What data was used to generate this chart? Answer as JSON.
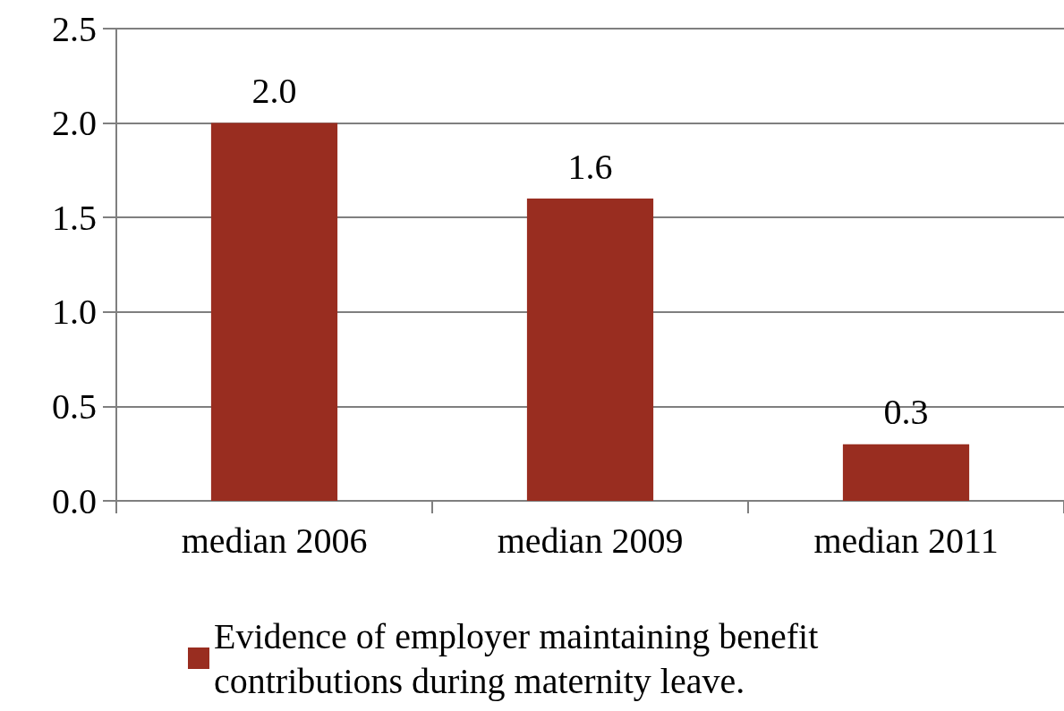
{
  "chart_data": {
    "type": "bar",
    "categories": [
      "median 2006",
      "median 2009",
      "median 2011"
    ],
    "series": [
      {
        "name": "Evidence of employer maintaining benefit contributions during maternity leave.",
        "color": "#992d20",
        "values": [
          2.0,
          1.6,
          0.3
        ],
        "value_labels": [
          "2.0",
          "1.6",
          "0.3"
        ]
      }
    ],
    "ylim": [
      0,
      2.5
    ],
    "yticks": [
      {
        "value": 0,
        "label": "0.0"
      },
      {
        "value": 0.5,
        "label": "0.5"
      },
      {
        "value": 1,
        "label": "1.0"
      },
      {
        "value": 1.5,
        "label": "1.5"
      },
      {
        "value": 2,
        "label": "2.0"
      },
      {
        "value": 2.5,
        "label": "2.5"
      }
    ],
    "grid": "y",
    "legend": "bottom"
  }
}
